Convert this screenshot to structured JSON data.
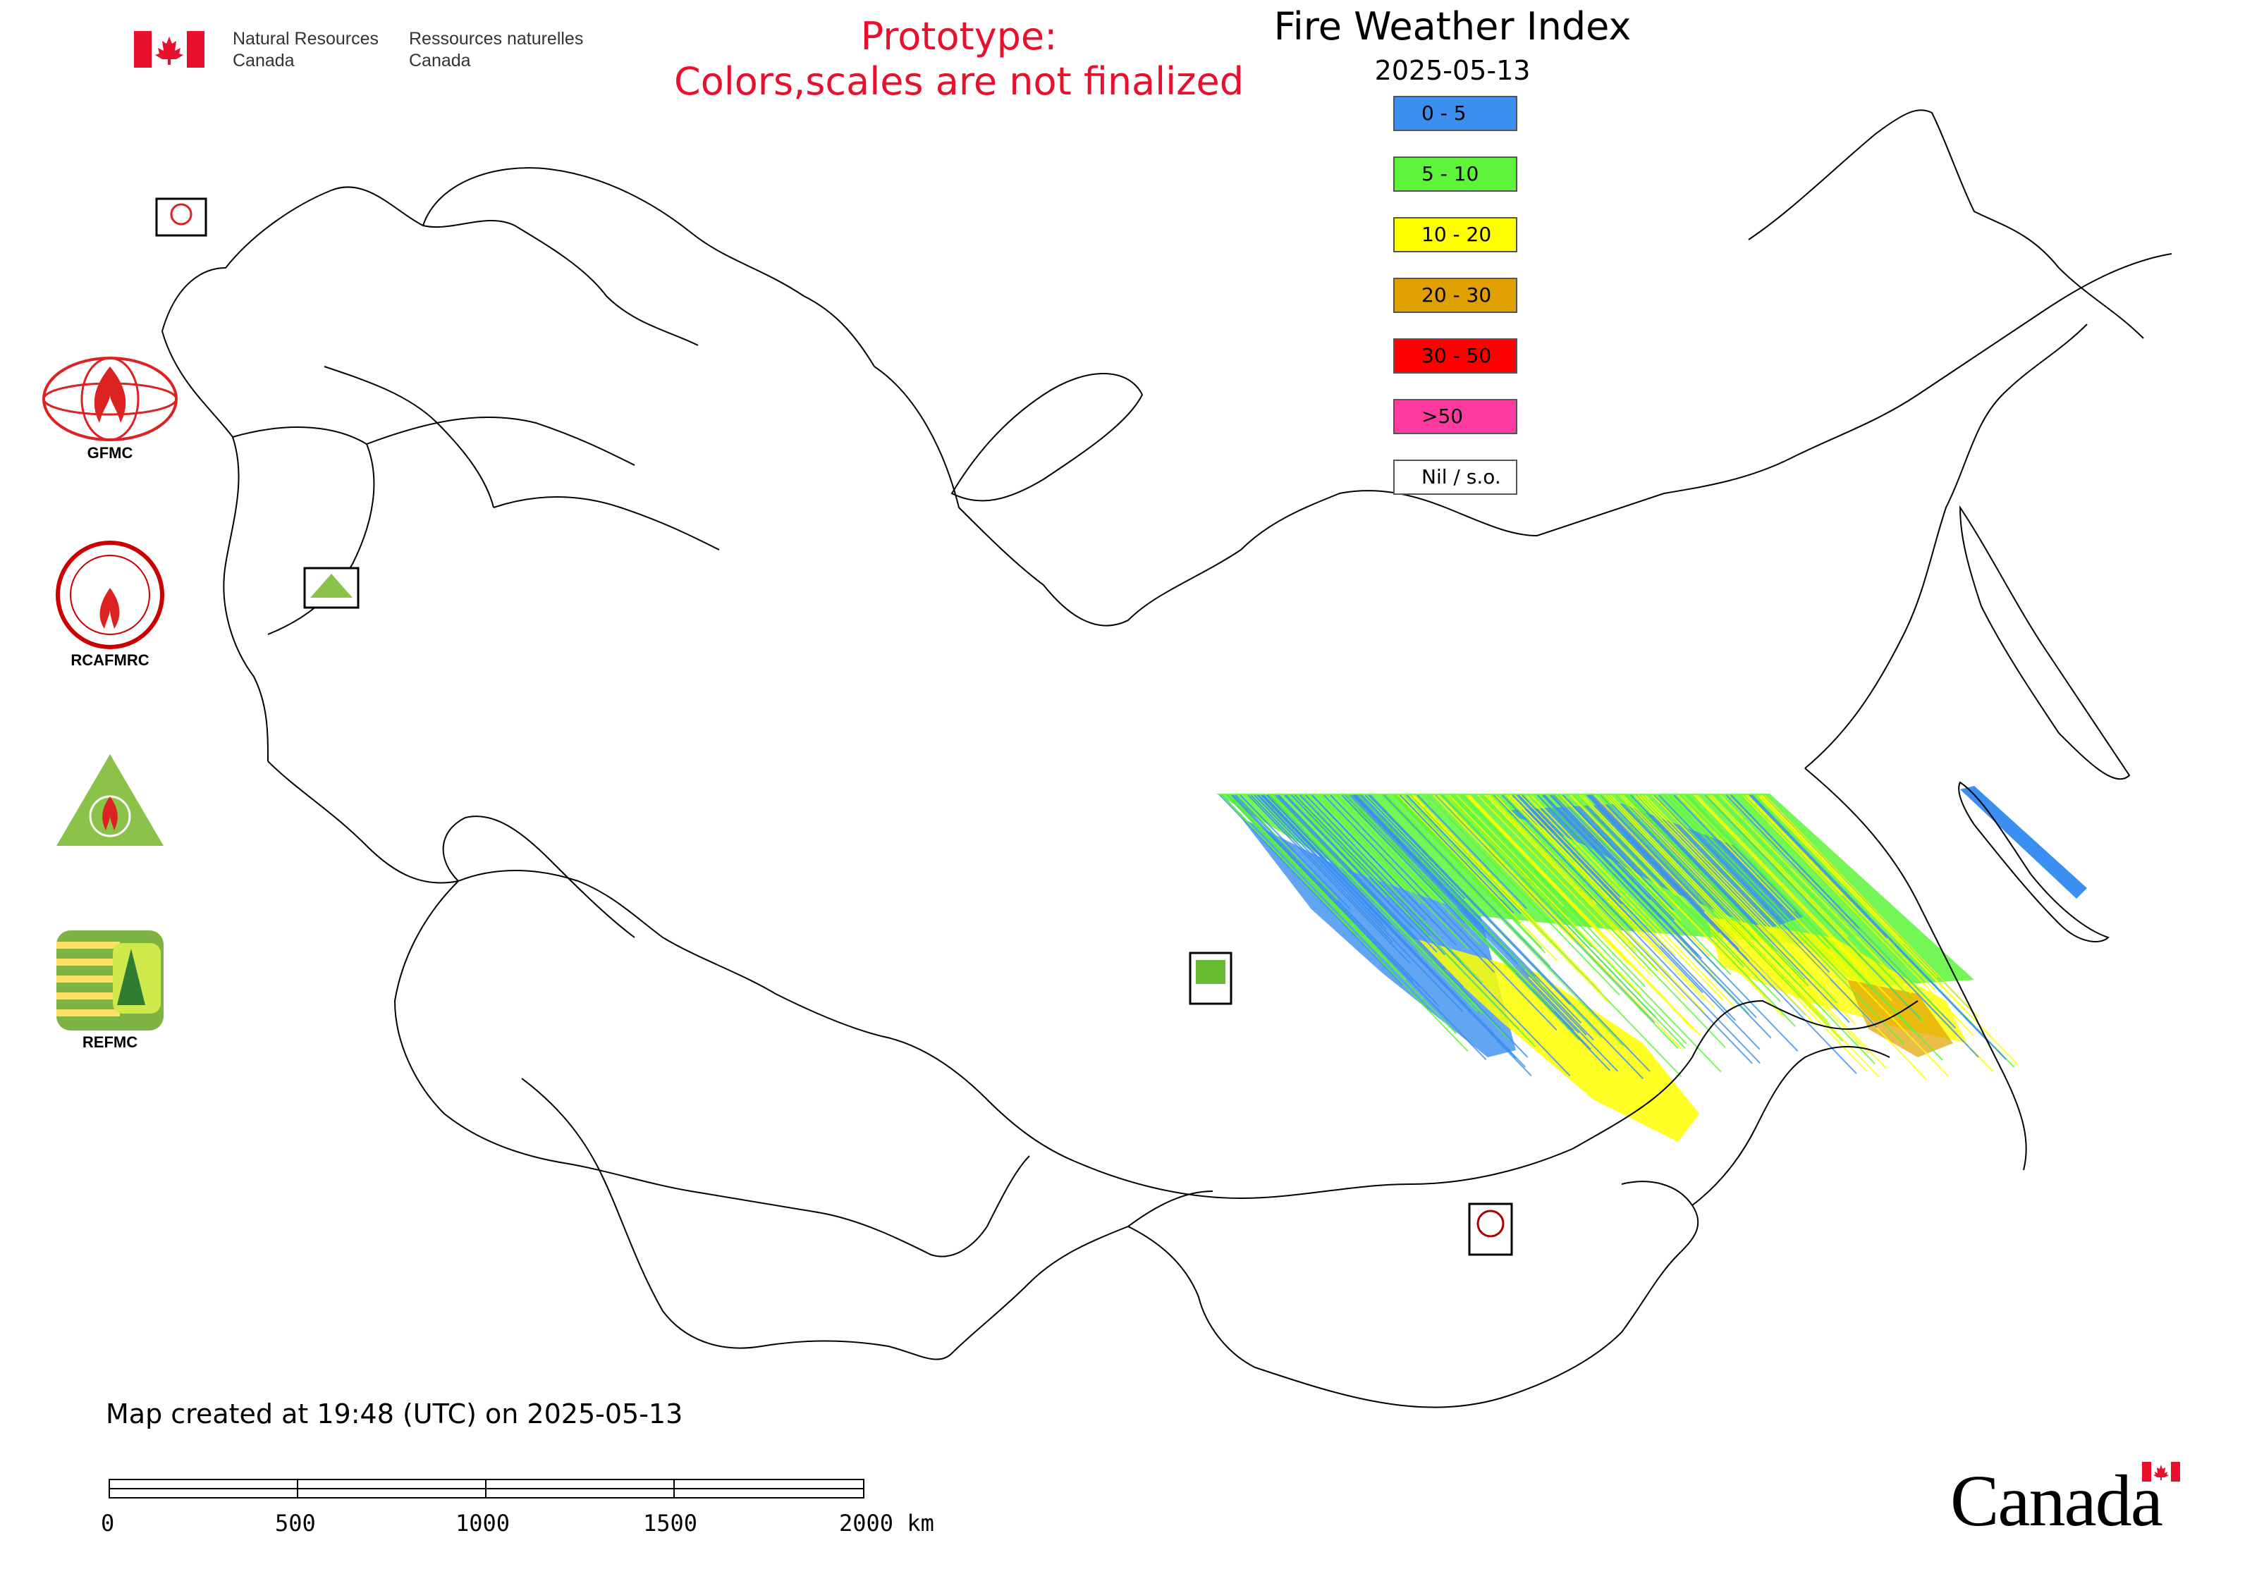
{
  "header": {
    "agency_en_1": "Natural Resources",
    "agency_en_2": "Canada",
    "agency_fr_1": "Ressources naturelles",
    "agency_fr_2": "Canada",
    "prototype_line1": "Prototype:",
    "prototype_line2": "Colors,scales are not finalized"
  },
  "map": {
    "title": "Fire Weather Index",
    "date": "2025-05-13"
  },
  "legend": [
    {
      "label": "0 - 5",
      "color": "#3b8ff0"
    },
    {
      "label": "5 - 10",
      "color": "#5cf53a"
    },
    {
      "label": "10 - 20",
      "color": "#ffff00"
    },
    {
      "label": "20 - 30",
      "color": "#e0a000"
    },
    {
      "label": "30 - 50",
      "color": "#ff0000"
    },
    {
      "label": ">50",
      "color": "#ff3ba0"
    },
    {
      "label": "Nil / s.o.",
      "color": "#ffffff"
    }
  ],
  "side_logos": [
    {
      "label": "GFMC"
    },
    {
      "label": "RCAFMRC"
    },
    {
      "label": ""
    },
    {
      "label": "REFMC"
    }
  ],
  "footer": {
    "created": "Map created at 19:48 (UTC) on 2025-05-13",
    "scale_ticks": [
      "0",
      "500",
      "1000",
      "1500",
      "2000 km"
    ],
    "wordmark": "Canada"
  }
}
